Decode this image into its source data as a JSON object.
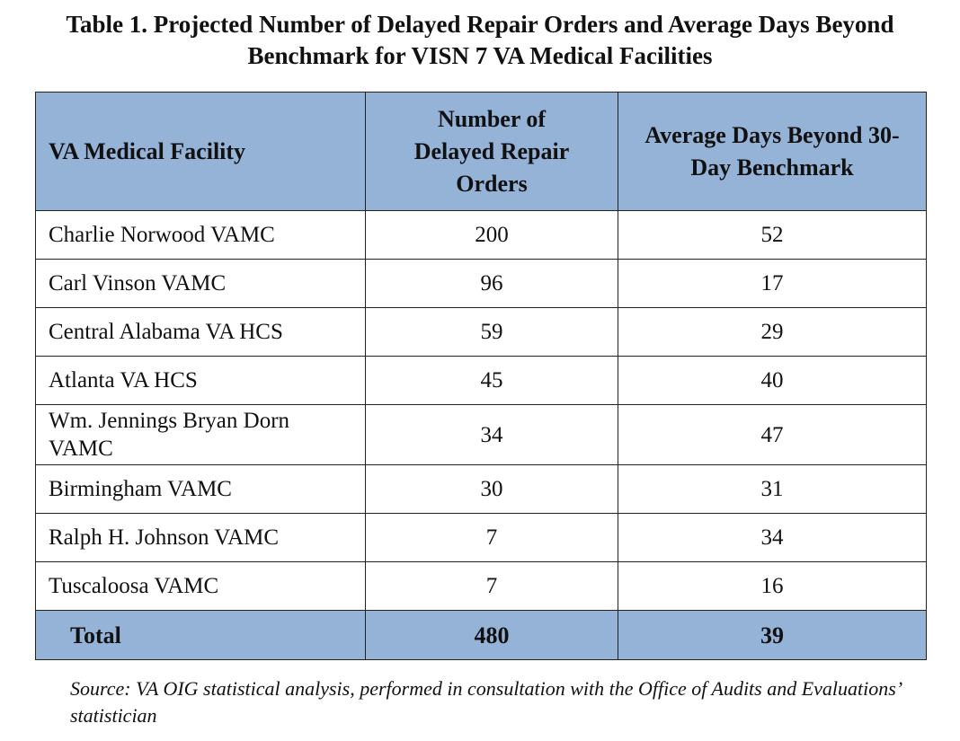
{
  "title": "Table 1. Projected Number of Delayed Repair Orders and Average Days Beyond Benchmark for VISN 7 VA Medical Facilities",
  "table": {
    "headers": [
      "VA Medical Facility",
      "Number of Delayed Repair Orders",
      "Average Days Beyond 30-Day Benchmark"
    ],
    "rows": [
      [
        "Charlie Norwood VAMC",
        200,
        52
      ],
      [
        "Carl Vinson VAMC",
        96,
        17
      ],
      [
        "Central Alabama VA HCS",
        59,
        29
      ],
      [
        "Atlanta VA HCS",
        45,
        40
      ],
      [
        "Wm. Jennings Bryan Dorn VAMC",
        34,
        47
      ],
      [
        "Birmingham VAMC",
        30,
        31
      ],
      [
        "Ralph H. Johnson VAMC",
        7,
        34
      ],
      [
        "Tuscaloosa VAMC",
        7,
        16
      ]
    ],
    "total": [
      "Total",
      480,
      39
    ]
  },
  "source": "Source: VA OIG statistical analysis, performed in consultation with the Office of Audits and Evaluations’ statistician"
}
